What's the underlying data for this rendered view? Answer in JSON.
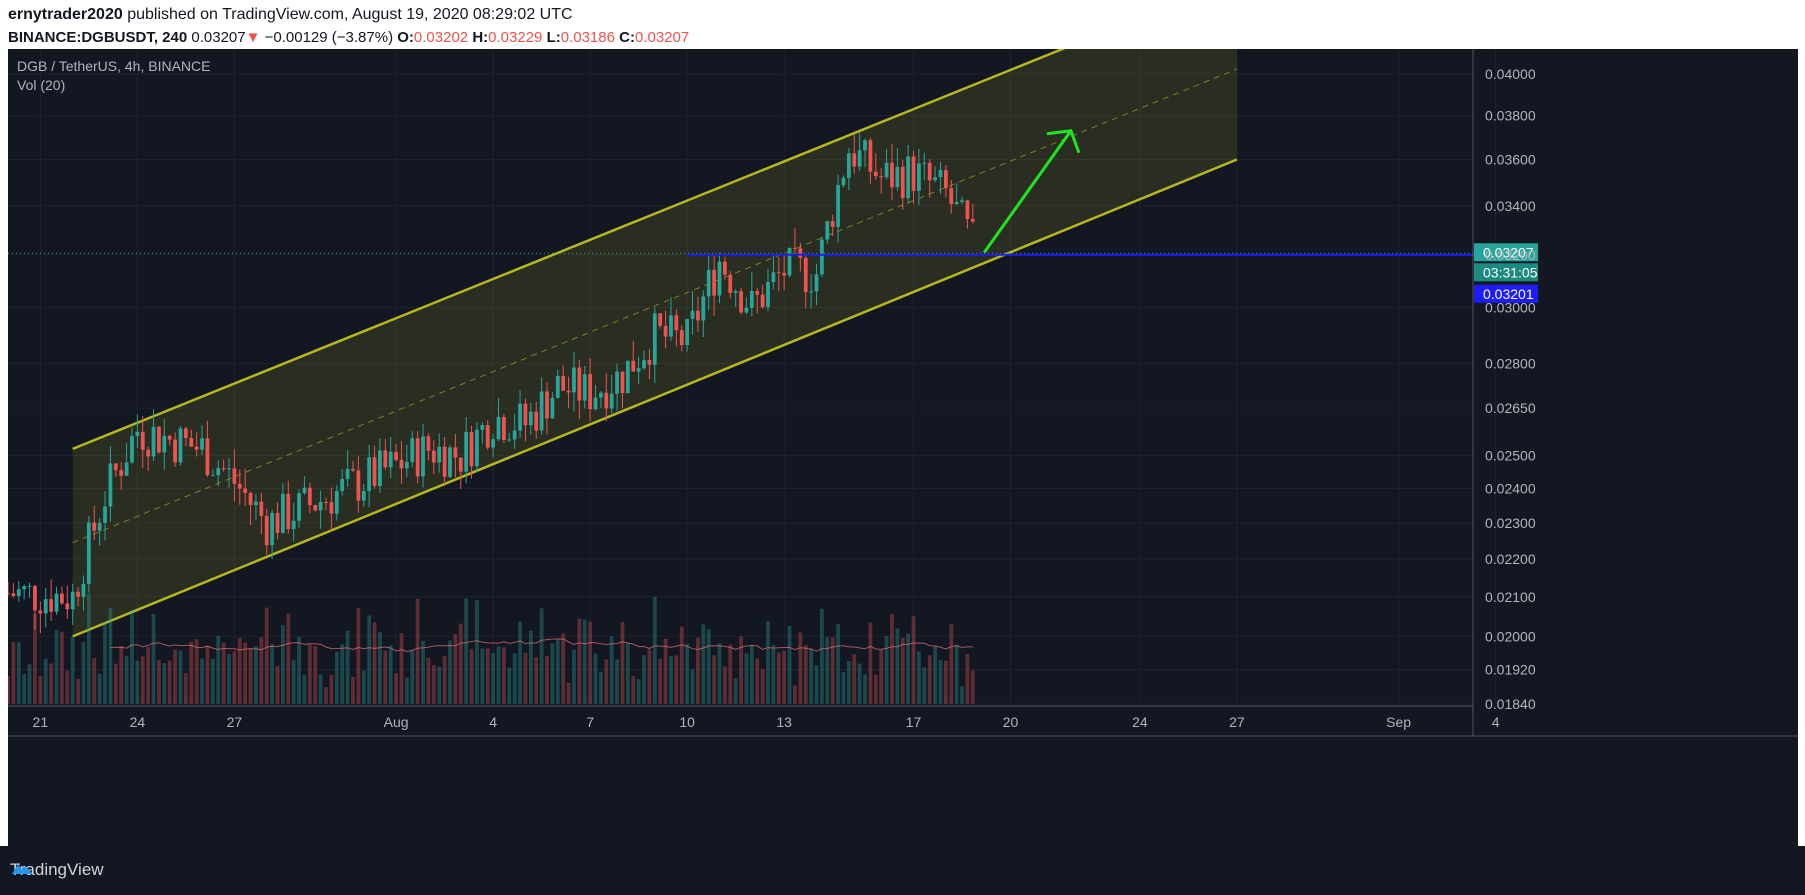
{
  "header": {
    "author": "ernytrader2020",
    "published_text": "published on TradingView.com, August 19, 2020 08:29:02 UTC",
    "symbol": "BINANCE:DGBUSDT, 240",
    "last": "0.03207",
    "change_arrow": "▼",
    "change": "−0.00129 (−3.87%)",
    "o_label": "O:",
    "o_value": "0.03202",
    "h_label": "H:",
    "h_value": "0.03229",
    "l_label": "L:",
    "l_value": "0.03186",
    "c_label": "C:",
    "c_value": "0.03207"
  },
  "legend": {
    "title": "DGB / TetherUS, 4h, BINANCE",
    "volume": "Vol (20)"
  },
  "price_tags": {
    "last": "0.03207",
    "countdown": "03:31:05",
    "line": "0.03201"
  },
  "footer": {
    "brand": "TradingView"
  },
  "colors": {
    "background": "#131722",
    "up": "#26a69a",
    "down": "#ef5350",
    "channel": "#b7b71f",
    "arrow": "#1ee51e",
    "hline": "#1c1cff"
  },
  "chart_data": {
    "type": "candlestick",
    "title": "DGB / TetherUS, 4h, BINANCE",
    "yscale": "log",
    "ylim": [
      0.0184,
      0.041
    ],
    "y_ticks": [
      "0.04000",
      "0.03800",
      "0.03600",
      "0.03400",
      "0.03200",
      "0.03000",
      "0.02800",
      "0.02650",
      "0.02500",
      "0.02400",
      "0.02300",
      "0.02200",
      "0.02100",
      "0.02000",
      "0.01920",
      "0.01840"
    ],
    "x_ticks": [
      "21",
      "24",
      "27",
      "Aug",
      "4",
      "7",
      "10",
      "13",
      "17",
      "20",
      "24",
      "27",
      "Sep",
      "4"
    ],
    "x_range_days": [
      "2020-07-20",
      "2020-09-05"
    ],
    "key_closes": [
      [
        "2020-07-20",
        0.0211
      ],
      [
        "2020-07-22",
        0.021
      ],
      [
        "2020-07-23",
        0.0238
      ],
      [
        "2020-07-24",
        0.0258
      ],
      [
        "2020-07-26",
        0.0252
      ],
      [
        "2020-07-27",
        0.0242
      ],
      [
        "2020-07-28",
        0.023
      ],
      [
        "2020-07-30",
        0.0238
      ],
      [
        "2020-08-01",
        0.0247
      ],
      [
        "2020-08-02",
        0.0252
      ],
      [
        "2020-08-03",
        0.025
      ],
      [
        "2020-08-04",
        0.0262
      ],
      [
        "2020-08-05",
        0.026
      ],
      [
        "2020-08-06",
        0.0272
      ],
      [
        "2020-08-07",
        0.027
      ],
      [
        "2020-08-08",
        0.0276
      ],
      [
        "2020-08-09",
        0.029
      ],
      [
        "2020-08-10",
        0.0288
      ],
      [
        "2020-08-11",
        0.0318
      ],
      [
        "2020-08-12",
        0.03
      ],
      [
        "2020-08-13",
        0.0314
      ],
      [
        "2020-08-14",
        0.0313
      ],
      [
        "2020-08-15",
        0.0365
      ],
      [
        "2020-08-16",
        0.0352
      ],
      [
        "2020-08-17",
        0.0354
      ],
      [
        "2020-08-18",
        0.0345
      ],
      [
        "2020-08-19",
        0.03207
      ]
    ],
    "channel": {
      "lower": [
        [
          "2020-07-22",
          0.02
        ],
        [
          "2020-08-27",
          0.036
        ]
      ],
      "upper": [
        [
          "2020-07-22",
          0.0252
        ],
        [
          "2020-08-27",
          0.045
        ]
      ]
    },
    "horizontal_line": 0.03201,
    "last_price": 0.03207,
    "series": [
      {
        "name": "Vol (20)",
        "type": "volume"
      }
    ]
  }
}
